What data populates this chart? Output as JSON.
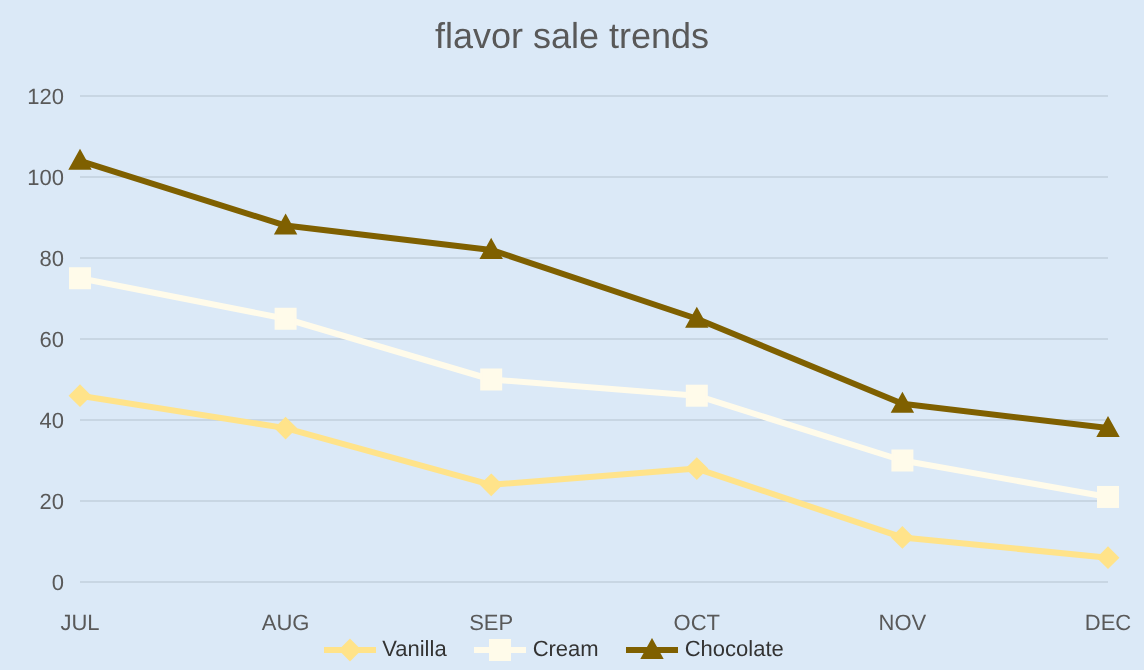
{
  "chart_data": {
    "type": "line",
    "title": "flavor sale trends",
    "categories": [
      "JUL",
      "AUG",
      "SEP",
      "OCT",
      "NOV",
      "DEC"
    ],
    "series": [
      {
        "name": "Vanilla",
        "color": "#ffe38a",
        "marker": "diamond",
        "values": [
          46,
          38,
          24,
          28,
          11,
          6
        ]
      },
      {
        "name": "Cream",
        "color": "#fffbea",
        "marker": "square",
        "values": [
          75,
          65,
          50,
          46,
          30,
          21
        ]
      },
      {
        "name": "Chocolate",
        "color": "#7f6000",
        "marker": "triangle",
        "values": [
          104,
          88,
          82,
          65,
          44,
          38
        ]
      }
    ],
    "ylim": [
      0,
      120
    ],
    "yticks": [
      0,
      20,
      40,
      60,
      80,
      100,
      120
    ],
    "grid": "y",
    "legend": "bottom",
    "line_style": "solid"
  }
}
